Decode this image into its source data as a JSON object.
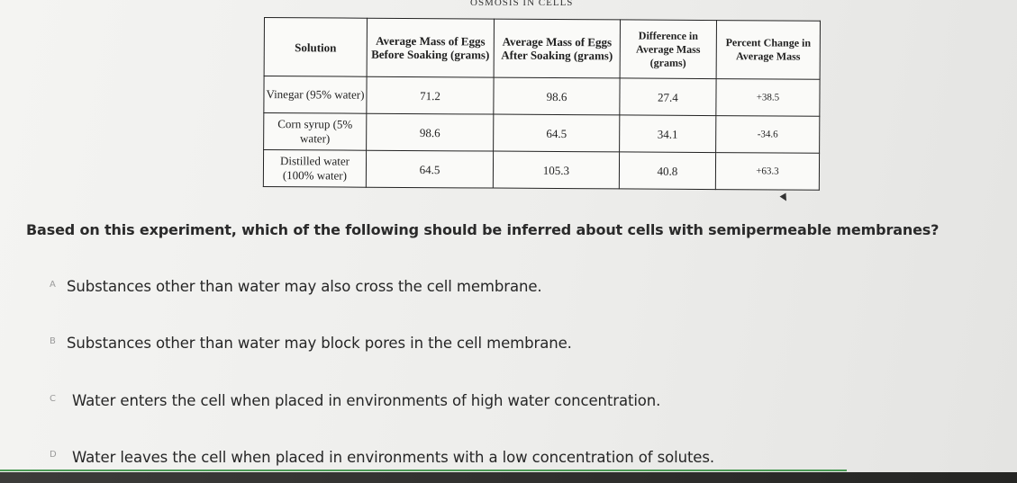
{
  "header": {
    "title": "OSMOSIS IN CELLS"
  },
  "table": {
    "headers": [
      "Solution",
      "Average Mass of Eggs Before Soaking (grams)",
      "Average Mass of Eggs After Soaking (grams)",
      "Difference in Average Mass (grams)",
      "Percent Change in Average Mass"
    ],
    "rows": [
      {
        "solution": "Vinegar (95% water)",
        "before": "71.2",
        "after": "98.6",
        "difference": "27.4",
        "percent": "+38.5"
      },
      {
        "solution": "Corn syrup (5% water)",
        "before": "98.6",
        "after": "64.5",
        "difference": "34.1",
        "percent": "-34.6"
      },
      {
        "solution": "Distilled water (100% water)",
        "before": "64.5",
        "after": "105.3",
        "difference": "40.8",
        "percent": "+63.3"
      }
    ]
  },
  "question": "Based on this experiment, which of the following should be inferred about cells with semipermeable membranes?",
  "choices": [
    {
      "marker": "A",
      "text": "Substances other than water may also cross the cell membrane."
    },
    {
      "marker": "B",
      "text": "Substances other than water may block pores in the cell membrane."
    },
    {
      "marker": "C",
      "text": "Water enters the cell when placed in environments of high water concentration."
    },
    {
      "marker": "D",
      "text": "Water leaves the cell when placed in environments with a low concentration of solutes."
    }
  ],
  "colors": {
    "accent_line": "#4b9a55",
    "text": "#262626"
  }
}
